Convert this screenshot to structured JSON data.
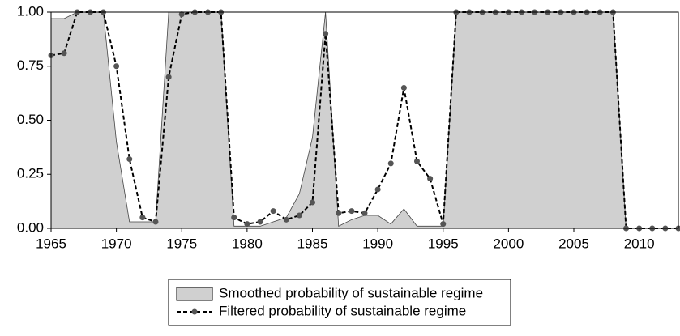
{
  "chart_data": {
    "type": "line",
    "x": [
      1965,
      1966,
      1967,
      1968,
      1969,
      1970,
      1971,
      1972,
      1973,
      1974,
      1975,
      1976,
      1977,
      1978,
      1979,
      1980,
      1981,
      1982,
      1983,
      1984,
      1985,
      1986,
      1987,
      1988,
      1989,
      1990,
      1991,
      1992,
      1993,
      1994,
      1995,
      1996,
      1997,
      1998,
      1999,
      2000,
      2001,
      2002,
      2003,
      2004,
      2005,
      2006,
      2007,
      2008,
      2009,
      2010,
      2011,
      2012,
      2013
    ],
    "series": [
      {
        "name": "Smoothed probability of sustainable regime",
        "kind": "area",
        "color": "#d0d0d0",
        "values": [
          0.97,
          0.97,
          1,
          1,
          1,
          0.4,
          0.03,
          0.03,
          0.03,
          1,
          1,
          1,
          1,
          1,
          0.01,
          0.01,
          0.01,
          0.03,
          0.05,
          0.16,
          0.42,
          1,
          0.01,
          0.04,
          0.06,
          0.06,
          0.02,
          0.09,
          0.01,
          0.01,
          0.01,
          1,
          1,
          1,
          1,
          1,
          1,
          1,
          1,
          1,
          1,
          1,
          1,
          1,
          0,
          0,
          0,
          0,
          0
        ]
      },
      {
        "name": "Filtered probability of sustainable regime",
        "kind": "line",
        "color": "#000000",
        "marker_color": "#555555",
        "values": [
          0.8,
          0.81,
          1,
          1,
          1,
          0.75,
          0.32,
          0.05,
          0.03,
          0.7,
          0.99,
          1,
          1,
          1,
          0.05,
          0.02,
          0.03,
          0.08,
          0.04,
          0.06,
          0.12,
          0.9,
          0.07,
          0.08,
          0.07,
          0.18,
          0.3,
          0.65,
          0.31,
          0.23,
          0.02,
          1,
          1,
          1,
          1,
          1,
          1,
          1,
          1,
          1,
          1,
          1,
          1,
          1,
          0,
          0,
          0,
          0,
          0
        ]
      }
    ],
    "xlim": [
      1965,
      2013
    ],
    "xticks": [
      1965,
      1970,
      1975,
      1980,
      1985,
      1990,
      1995,
      2000,
      2005,
      2010
    ],
    "ylim": [
      0,
      1
    ],
    "yticks": [
      {
        "value": 0,
        "label": "0.00"
      },
      {
        "value": 0.25,
        "label": "0.25"
      },
      {
        "value": 0.5,
        "label": "0.50"
      },
      {
        "value": 0.75,
        "label": "0.75"
      },
      {
        "value": 1,
        "label": "1.00"
      }
    ],
    "legend": "bottom"
  }
}
